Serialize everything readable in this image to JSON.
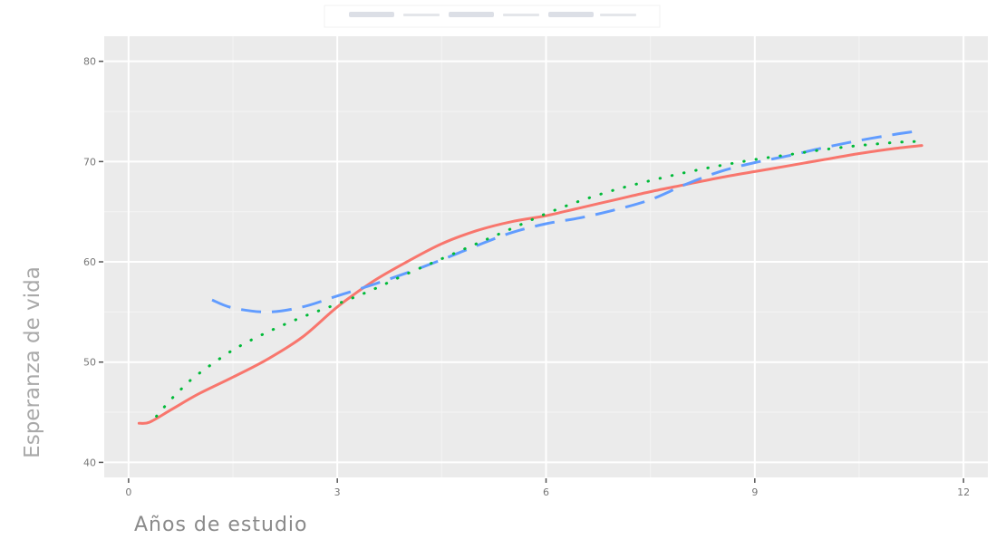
{
  "chart_data": {
    "type": "line",
    "xlabel": "Años de estudio",
    "ylabel": "Esperanza de vida",
    "xlim": [
      -0.35,
      12.35
    ],
    "ylim": [
      38.5,
      82.5
    ],
    "x_ticks": [
      0,
      3,
      6,
      9,
      12
    ],
    "y_ticks": [
      40,
      50,
      60,
      70,
      80
    ],
    "x_tick_labels": [
      "0",
      "3",
      "6",
      "9",
      "12"
    ],
    "y_tick_labels": [
      "40",
      "50",
      "60",
      "70",
      "80"
    ],
    "grid": true,
    "legend": "top (illegible)",
    "series": [
      {
        "style": "solid",
        "color": "#f8766d",
        "points": [
          [
            0.15,
            43.9
          ],
          [
            0.3,
            44.0
          ],
          [
            0.6,
            45.2
          ],
          [
            1.0,
            46.8
          ],
          [
            1.5,
            48.5
          ],
          [
            2.0,
            50.3
          ],
          [
            2.5,
            52.5
          ],
          [
            3.0,
            55.5
          ],
          [
            3.5,
            58.0
          ],
          [
            4.0,
            60.0
          ],
          [
            4.5,
            61.8
          ],
          [
            5.0,
            63.1
          ],
          [
            5.5,
            64.0
          ],
          [
            6.0,
            64.6
          ],
          [
            6.5,
            65.4
          ],
          [
            7.0,
            66.2
          ],
          [
            7.5,
            67.0
          ],
          [
            8.0,
            67.7
          ],
          [
            8.5,
            68.4
          ],
          [
            9.0,
            69.0
          ],
          [
            9.5,
            69.6
          ],
          [
            10.0,
            70.2
          ],
          [
            10.5,
            70.8
          ],
          [
            11.0,
            71.3
          ],
          [
            11.4,
            71.6
          ]
        ]
      },
      {
        "style": "dotted",
        "color": "#00ba38",
        "points": [
          [
            0.4,
            44.6
          ],
          [
            0.6,
            46.2
          ],
          [
            0.8,
            47.6
          ],
          [
            1.0,
            48.8
          ],
          [
            1.5,
            51.2
          ],
          [
            2.0,
            53.0
          ],
          [
            2.5,
            54.5
          ],
          [
            3.0,
            55.8
          ],
          [
            3.5,
            57.2
          ],
          [
            4.0,
            58.8
          ],
          [
            4.5,
            60.3
          ],
          [
            5.0,
            61.8
          ],
          [
            5.5,
            63.3
          ],
          [
            6.0,
            64.8
          ],
          [
            6.5,
            66.1
          ],
          [
            7.0,
            67.2
          ],
          [
            7.5,
            68.1
          ],
          [
            8.0,
            68.9
          ],
          [
            8.5,
            69.6
          ],
          [
            9.0,
            70.2
          ],
          [
            9.5,
            70.7
          ],
          [
            10.0,
            71.2
          ],
          [
            10.5,
            71.6
          ],
          [
            11.0,
            71.9
          ],
          [
            11.3,
            72.0
          ]
        ]
      },
      {
        "style": "dashed",
        "color": "#619cff",
        "points": [
          [
            1.2,
            56.2
          ],
          [
            1.5,
            55.4
          ],
          [
            2.0,
            55.0
          ],
          [
            2.5,
            55.5
          ],
          [
            3.0,
            56.6
          ],
          [
            3.5,
            57.7
          ],
          [
            4.0,
            58.9
          ],
          [
            4.5,
            60.2
          ],
          [
            5.0,
            61.6
          ],
          [
            5.5,
            62.9
          ],
          [
            6.0,
            63.8
          ],
          [
            6.5,
            64.4
          ],
          [
            7.0,
            65.2
          ],
          [
            7.5,
            66.2
          ],
          [
            8.0,
            67.7
          ],
          [
            8.5,
            69.0
          ],
          [
            9.0,
            69.9
          ],
          [
            9.5,
            70.6
          ],
          [
            10.0,
            71.4
          ],
          [
            10.5,
            72.1
          ],
          [
            11.0,
            72.7
          ],
          [
            11.3,
            73.0
          ]
        ]
      }
    ]
  }
}
